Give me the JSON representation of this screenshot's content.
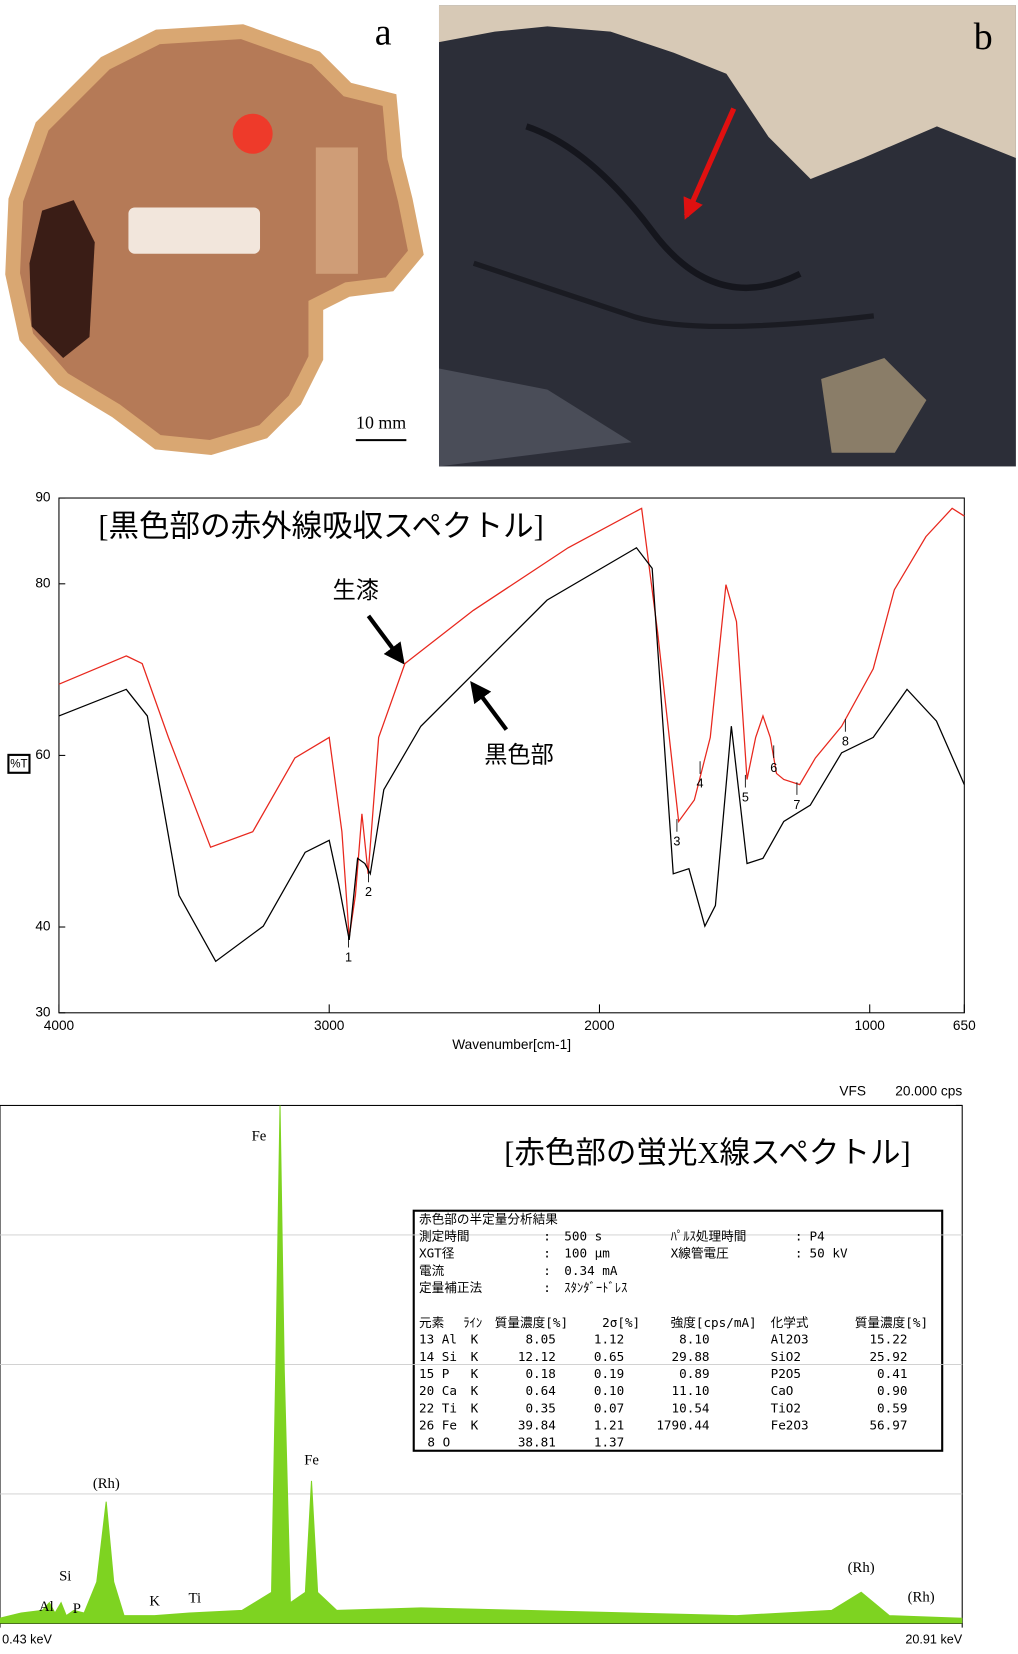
{
  "panel_a": {
    "label": "a",
    "scale_bar": "10 mm"
  },
  "panel_b": {
    "label": "b"
  },
  "chart_data": [
    {
      "type": "line",
      "title": "[黒色部の赤外線吸収スペクトル]",
      "xlabel": "Wavenumber[cm-1]",
      "ylabel": "%T",
      "xlim": [
        4000,
        650
      ],
      "ylim": [
        30,
        90
      ],
      "xticks": [
        4000,
        3000,
        2000,
        1000,
        650
      ],
      "yticks": [
        30,
        40,
        60,
        80,
        90
      ],
      "peak_labels": [
        "1",
        "2",
        "3",
        "4",
        "5",
        "6",
        "7",
        "8"
      ],
      "series": [
        {
          "name": "生漆",
          "color": "#e8281e",
          "x": [
            4000,
            3751,
            3692,
            3595,
            3439,
            3283,
            3127,
            3000,
            2953,
            2926,
            2903,
            2879,
            2856,
            2817,
            2720,
            2467,
            2116,
            1844,
            1785,
            1707,
            1649,
            1590,
            1532,
            1493,
            1454,
            1422,
            1395,
            1368,
            1345,
            1318,
            1259,
            1201,
            1104,
            987,
            909,
            792,
            695,
            650
          ],
          "values": [
            68.3,
            71.6,
            70.7,
            62.1,
            49.3,
            51.1,
            59.7,
            62.1,
            51.1,
            38.8,
            43.7,
            53.2,
            46.2,
            62.1,
            70.7,
            76.9,
            84.2,
            88.8,
            74.4,
            52.3,
            54.8,
            62.1,
            79.9,
            75.6,
            57.2,
            62.1,
            64.6,
            62.1,
            57.9,
            57.2,
            56.6,
            59.7,
            63.4,
            70.1,
            79.3,
            85.5,
            88.8,
            87.9
          ]
        },
        {
          "name": "黒色部",
          "color": "#000000",
          "x": [
            4000,
            3751,
            3673,
            3556,
            3420,
            3244,
            3089,
            3000,
            2965,
            2926,
            2895,
            2868,
            2848,
            2798,
            2661,
            2467,
            2194,
            1863,
            1805,
            1727,
            1669,
            1610,
            1571,
            1512,
            1454,
            1395,
            1318,
            1220,
            1104,
            987,
            862,
            753,
            650
          ],
          "values": [
            64.6,
            67.7,
            64.6,
            43.7,
            36.0,
            40.1,
            48.7,
            50.1,
            45.0,
            38.5,
            48.0,
            47.4,
            46.2,
            56.0,
            63.4,
            69.5,
            78.1,
            84.2,
            81.8,
            46.2,
            46.8,
            40.1,
            42.5,
            63.4,
            47.4,
            48.0,
            52.3,
            54.2,
            60.3,
            62.1,
            67.7,
            64.0,
            56.6
          ]
        }
      ]
    },
    {
      "type": "area",
      "title": "[赤色部の蛍光X線スペクトル]",
      "ylabel": "VFS",
      "color": "#7ed321",
      "xlim": [
        0.43,
        20.91
      ],
      "xticks": [
        {
          "value": 0.43,
          "label": "0.43 keV"
        },
        {
          "value": 20.91,
          "label": "20.91 keV"
        }
      ],
      "ylim": [
        0,
        20
      ],
      "yticks": [
        {
          "value": 20,
          "label": "20.000 cps"
        }
      ],
      "gridlines": [
        5,
        10,
        15
      ],
      "x": [
        0.43,
        0.88,
        1.33,
        1.48,
        1.6,
        1.73,
        1.84,
        2.0,
        2.22,
        2.49,
        2.69,
        2.85,
        3.07,
        3.72,
        4.46,
        5.58,
        6.21,
        6.3,
        6.39,
        6.48,
        6.61,
        6.93,
        7.06,
        7.19,
        7.6,
        9.39,
        11.63,
        13.87,
        16.11,
        18.13,
        18.76,
        19.36,
        20.91
      ],
      "values": [
        0.2,
        0.4,
        0.5,
        0.8,
        0.4,
        0.8,
        0.3,
        0.5,
        0.4,
        1.6,
        4.7,
        1.6,
        0.3,
        0.3,
        0.4,
        0.5,
        1.2,
        9.8,
        20,
        9.8,
        0.8,
        1.2,
        5.5,
        1.2,
        0.5,
        0.6,
        0.5,
        0.4,
        0.3,
        0.5,
        1.2,
        0.3,
        0.2
      ],
      "peak_labels": [
        "Fe",
        "Fe",
        "(Rh)",
        "(Rh)",
        "(Rh)",
        "Al",
        "Si",
        "P",
        "K",
        "Ti"
      ]
    }
  ],
  "table": {
    "title": "赤色部の半定量分析結果",
    "params": [
      [
        {
          "label": "測定時間",
          "sep": ":",
          "value": "500 s"
        },
        {
          "label": "ﾊﾟﾙｽ処理時間",
          "sep": ":",
          "value": "P4"
        }
      ],
      [
        {
          "label": "XGT径",
          "sep": ":",
          "value": "100 μm"
        },
        {
          "label": "X線管電圧",
          "sep": ":",
          "value": "50 kV"
        }
      ],
      [
        {
          "label": "電流",
          "sep": ":",
          "value": "0.34 mA"
        }
      ],
      [
        {
          "label": "定量補正法",
          "sep": ":",
          "value": "ｽﾀﾝﾀﾞｰﾄﾞﾚｽ"
        }
      ]
    ],
    "header": {
      "element": "元素",
      "line": "ﾗｲﾝ",
      "mass": "質量濃度[%]",
      "sigma": "2σ[%]",
      "intensity": "強度[cps/mA]",
      "formula": "化学式",
      "oxide": "質量濃度[%]"
    },
    "rows": [
      {
        "element": "13 Al",
        "line": "K",
        "mass": "8.05",
        "sigma": "1.12",
        "intensity": "8.10",
        "formula": "Al2O3",
        "oxide": "15.22"
      },
      {
        "element": "14 Si",
        "line": "K",
        "mass": "12.12",
        "sigma": "0.65",
        "intensity": "29.88",
        "formula": "SiO2",
        "oxide": "25.92"
      },
      {
        "element": "15 P",
        "line": "K",
        "mass": "0.18",
        "sigma": "0.19",
        "intensity": "0.89",
        "formula": "P2O5",
        "oxide": "0.41"
      },
      {
        "element": "20 Ca",
        "line": "K",
        "mass": "0.64",
        "sigma": "0.10",
        "intensity": "11.10",
        "formula": "CaO",
        "oxide": "0.90"
      },
      {
        "element": "22 Ti",
        "line": "K",
        "mass": "0.35",
        "sigma": "0.07",
        "intensity": "10.54",
        "formula": "TiO2",
        "oxide": "0.59"
      },
      {
        "element": "26 Fe",
        "line": "K",
        "mass": "39.84",
        "sigma": "1.21",
        "intensity": "1790.44",
        "formula": "Fe2O3",
        "oxide": "56.97"
      },
      {
        "element": "8 O",
        "mass": "38.81",
        "sigma": "1.37"
      }
    ]
  }
}
